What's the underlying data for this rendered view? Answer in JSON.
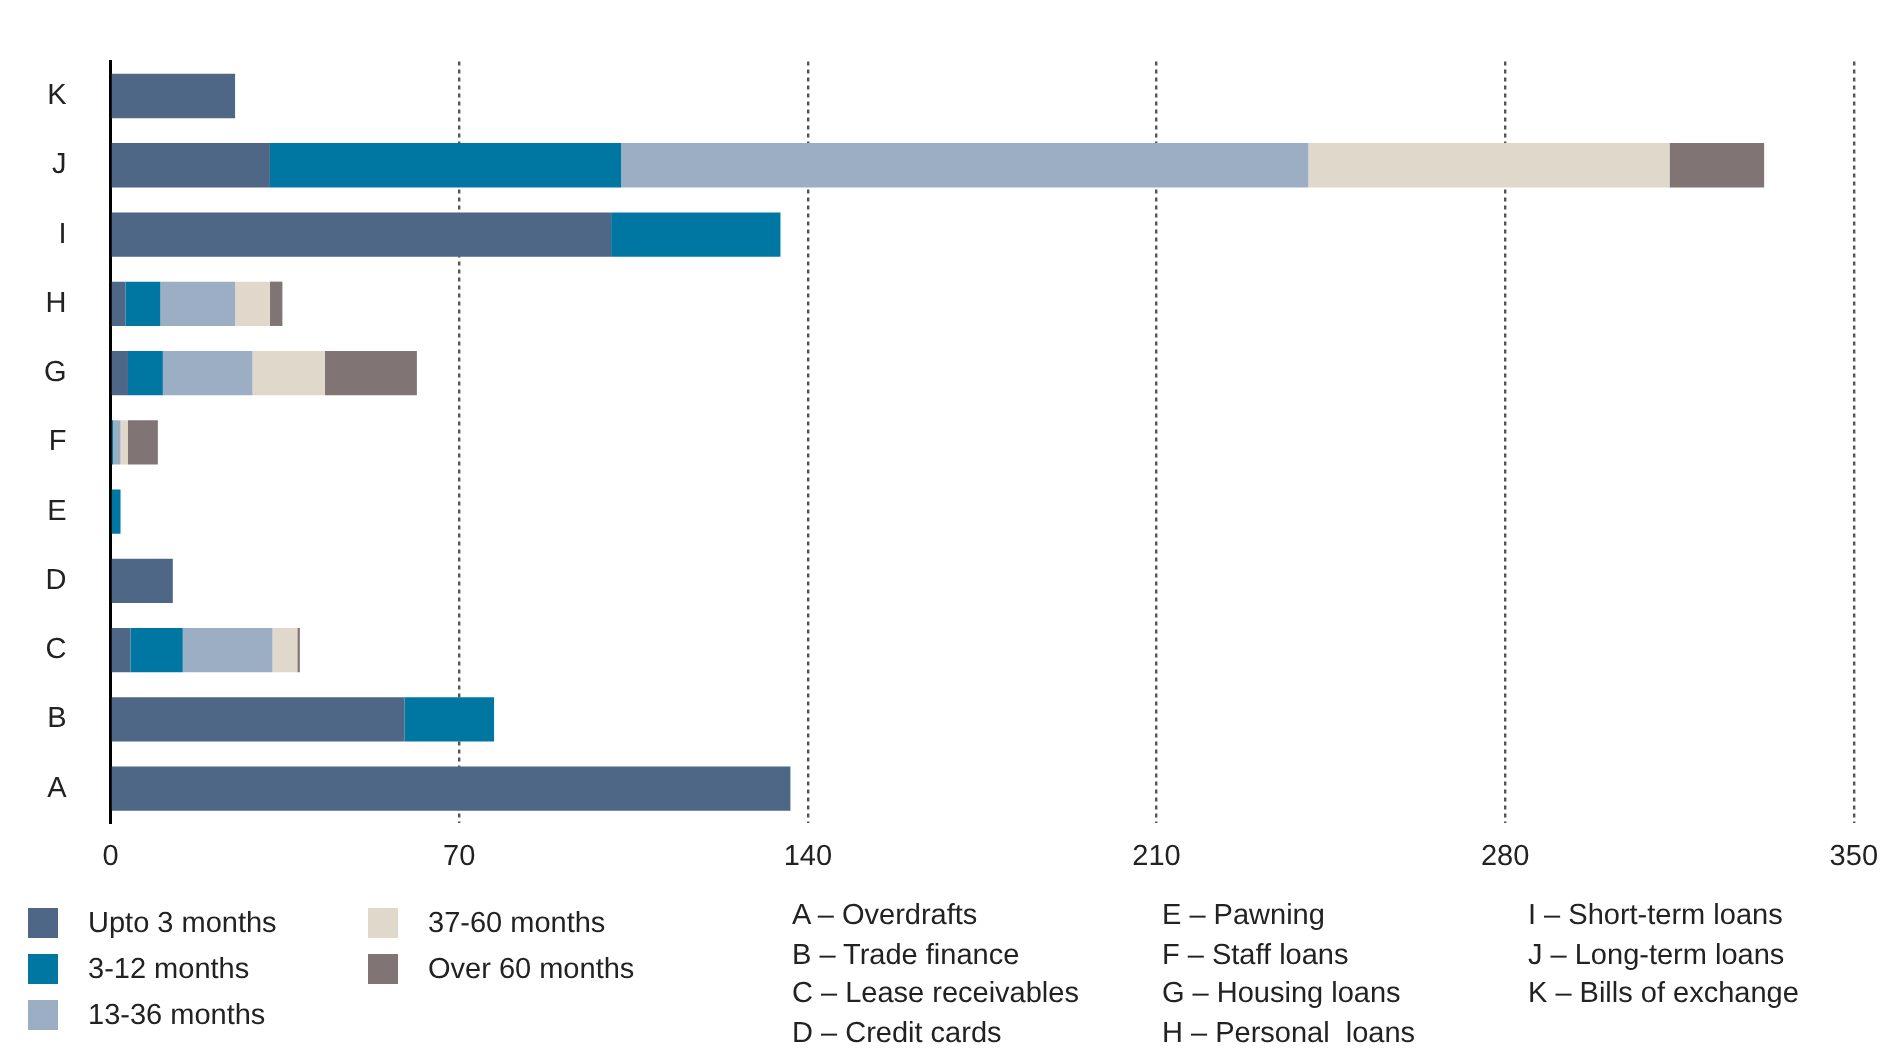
{
  "chart_data": {
    "type": "bar",
    "orientation": "horizontal",
    "stacked": true,
    "categories": [
      "K",
      "J",
      "I",
      "H",
      "G",
      "F",
      "E",
      "D",
      "C",
      "B",
      "A"
    ],
    "series": [
      {
        "name": "Upto 3 months",
        "color": "#4f6787",
        "values": [
          25,
          32,
          100.5,
          3,
          3.5,
          0,
          0,
          12.5,
          4,
          59,
          136.5
        ]
      },
      {
        "name": "3-12 months",
        "color": "#0077a2",
        "values": [
          0,
          70.5,
          34,
          7,
          7,
          0.5,
          2,
          0,
          10.5,
          18,
          0
        ]
      },
      {
        "name": "13-36 months",
        "color": "#9caec4",
        "values": [
          0,
          138,
          0,
          15,
          18,
          1.5,
          0,
          0,
          18,
          0,
          0
        ]
      },
      {
        "name": "37-60 months",
        "color": "#e0d8ca",
        "values": [
          0,
          72.5,
          0,
          7,
          14.5,
          1.5,
          0,
          0,
          5,
          0,
          0
        ]
      },
      {
        "name": "Over 60 months",
        "color": "#807475",
        "values": [
          0,
          19,
          0,
          2.5,
          18.5,
          6,
          0,
          0,
          0.5,
          0,
          0
        ]
      }
    ],
    "xlim": [
      0,
      350
    ],
    "xticks": [
      0,
      70,
      140,
      210,
      280,
      350
    ],
    "grid": "x",
    "legend": "bottom",
    "annotations": [
      "A – Overdrafts",
      "B – Trade finance",
      "C – Lease receivables",
      "D – Credit cards",
      "E – Pawning",
      "F – Staff loans",
      "G – Housing loans",
      "H – Personal  loans",
      "I – Short-term loans",
      "J – Long-term loans",
      "K – Bills of exchange"
    ]
  }
}
